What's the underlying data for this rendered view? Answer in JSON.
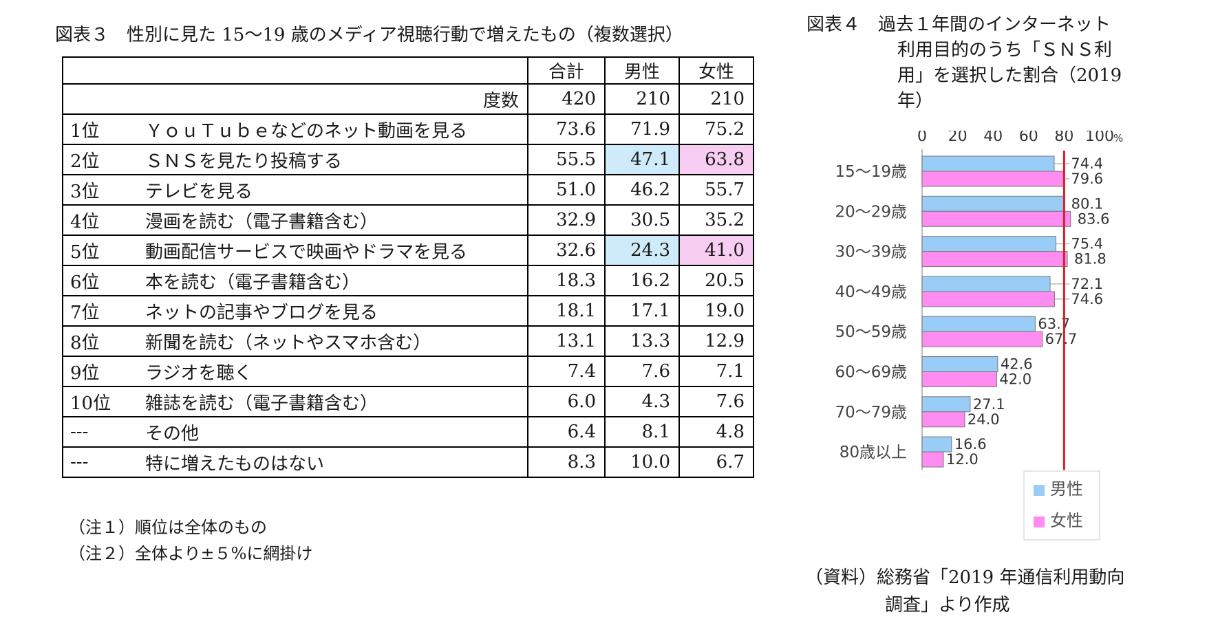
{
  "fig3": {
    "title": "図表３　性別に見た 15～19 歳のメディア視聴行動で増えたもの（複数選択）",
    "headers": [
      "合計",
      "男性",
      "女性"
    ],
    "count_label": "度数",
    "counts": [
      "420",
      "210",
      "210"
    ],
    "rows": [
      {
        "rank": "1位",
        "item": "ＹｏｕＴｕｂｅなどのネット動画を見る",
        "total": "73.6",
        "male": "71.9",
        "female": "75.2"
      },
      {
        "rank": "2位",
        "item": "ＳＮＳを見たり投稿する",
        "total": "55.5",
        "male": "47.1",
        "female": "63.8"
      },
      {
        "rank": "3位",
        "item": "テレビを見る",
        "total": "51.0",
        "male": "46.2",
        "female": "55.7"
      },
      {
        "rank": "4位",
        "item": "漫画を読む（電子書籍含む）",
        "total": "32.9",
        "male": "30.5",
        "female": "35.2"
      },
      {
        "rank": "5位",
        "item": "動画配信サービスで映画やドラマを見る",
        "total": "32.6",
        "male": "24.3",
        "female": "41.0"
      },
      {
        "rank": "6位",
        "item": "本を読む（電子書籍含む）",
        "total": "18.3",
        "male": "16.2",
        "female": "20.5"
      },
      {
        "rank": "7位",
        "item": "ネットの記事やブログを見る",
        "total": "18.1",
        "male": "17.1",
        "female": "19.0"
      },
      {
        "rank": "8位",
        "item": "新聞を読む（ネットやスマホ含む）",
        "total": "13.1",
        "male": "13.3",
        "female": "12.9"
      },
      {
        "rank": "9位",
        "item": "ラジオを聴く",
        "total": "7.4",
        "male": "7.6",
        "female": "7.1"
      },
      {
        "rank": "10位",
        "item": "雑誌を読む（電子書籍含む）",
        "total": "6.0",
        "male": "4.3",
        "female": "7.6"
      },
      {
        "rank": "---",
        "item": "その他",
        "total": "6.4",
        "male": "8.1",
        "female": "4.8"
      },
      {
        "rank": "---",
        "item": "特に増えたものはない",
        "total": "8.3",
        "male": "10.0",
        "female": "6.7"
      }
    ],
    "notes": [
      "（注１）順位は全体のもの",
      "（注２）全体より±５%に網掛け"
    ],
    "highlight_colors": {
      "below": "#cfeaf8",
      "above": "#f7cdf2"
    }
  },
  "fig4": {
    "title_line1": "図表４　過去１年間のインターネット",
    "title_line2": "利用目的のうち「ＳＮＳ利",
    "title_line3": "用」を選択した割合（2019",
    "title_line4": "年）",
    "source_line1": "（資料）総務省「2019 年通信利用動向",
    "source_line2": "調査」より作成"
  },
  "chart_data": {
    "type": "bar",
    "orientation": "horizontal",
    "categories": [
      "15～19歳",
      "20～29歳",
      "30～39歳",
      "40～49歳",
      "50～59歳",
      "60～69歳",
      "70～79歳",
      "80歳以上"
    ],
    "series": [
      {
        "name": "男性",
        "color": "#99ccf7",
        "values": [
          74.4,
          80.1,
          75.4,
          72.1,
          63.7,
          42.6,
          27.1,
          16.6
        ]
      },
      {
        "name": "女性",
        "color": "#ff8cf0",
        "values": [
          79.6,
          83.6,
          81.8,
          74.6,
          67.7,
          42.0,
          24.0,
          12.0
        ]
      }
    ],
    "x_ticks": [
      "0",
      "20",
      "40",
      "60",
      "80",
      "100"
    ],
    "x_unit": "%",
    "xlim": [
      0,
      100
    ],
    "reference_line": {
      "value": 80,
      "color": "#d6202a"
    },
    "legend_position": "bottom-right",
    "grid": false
  }
}
